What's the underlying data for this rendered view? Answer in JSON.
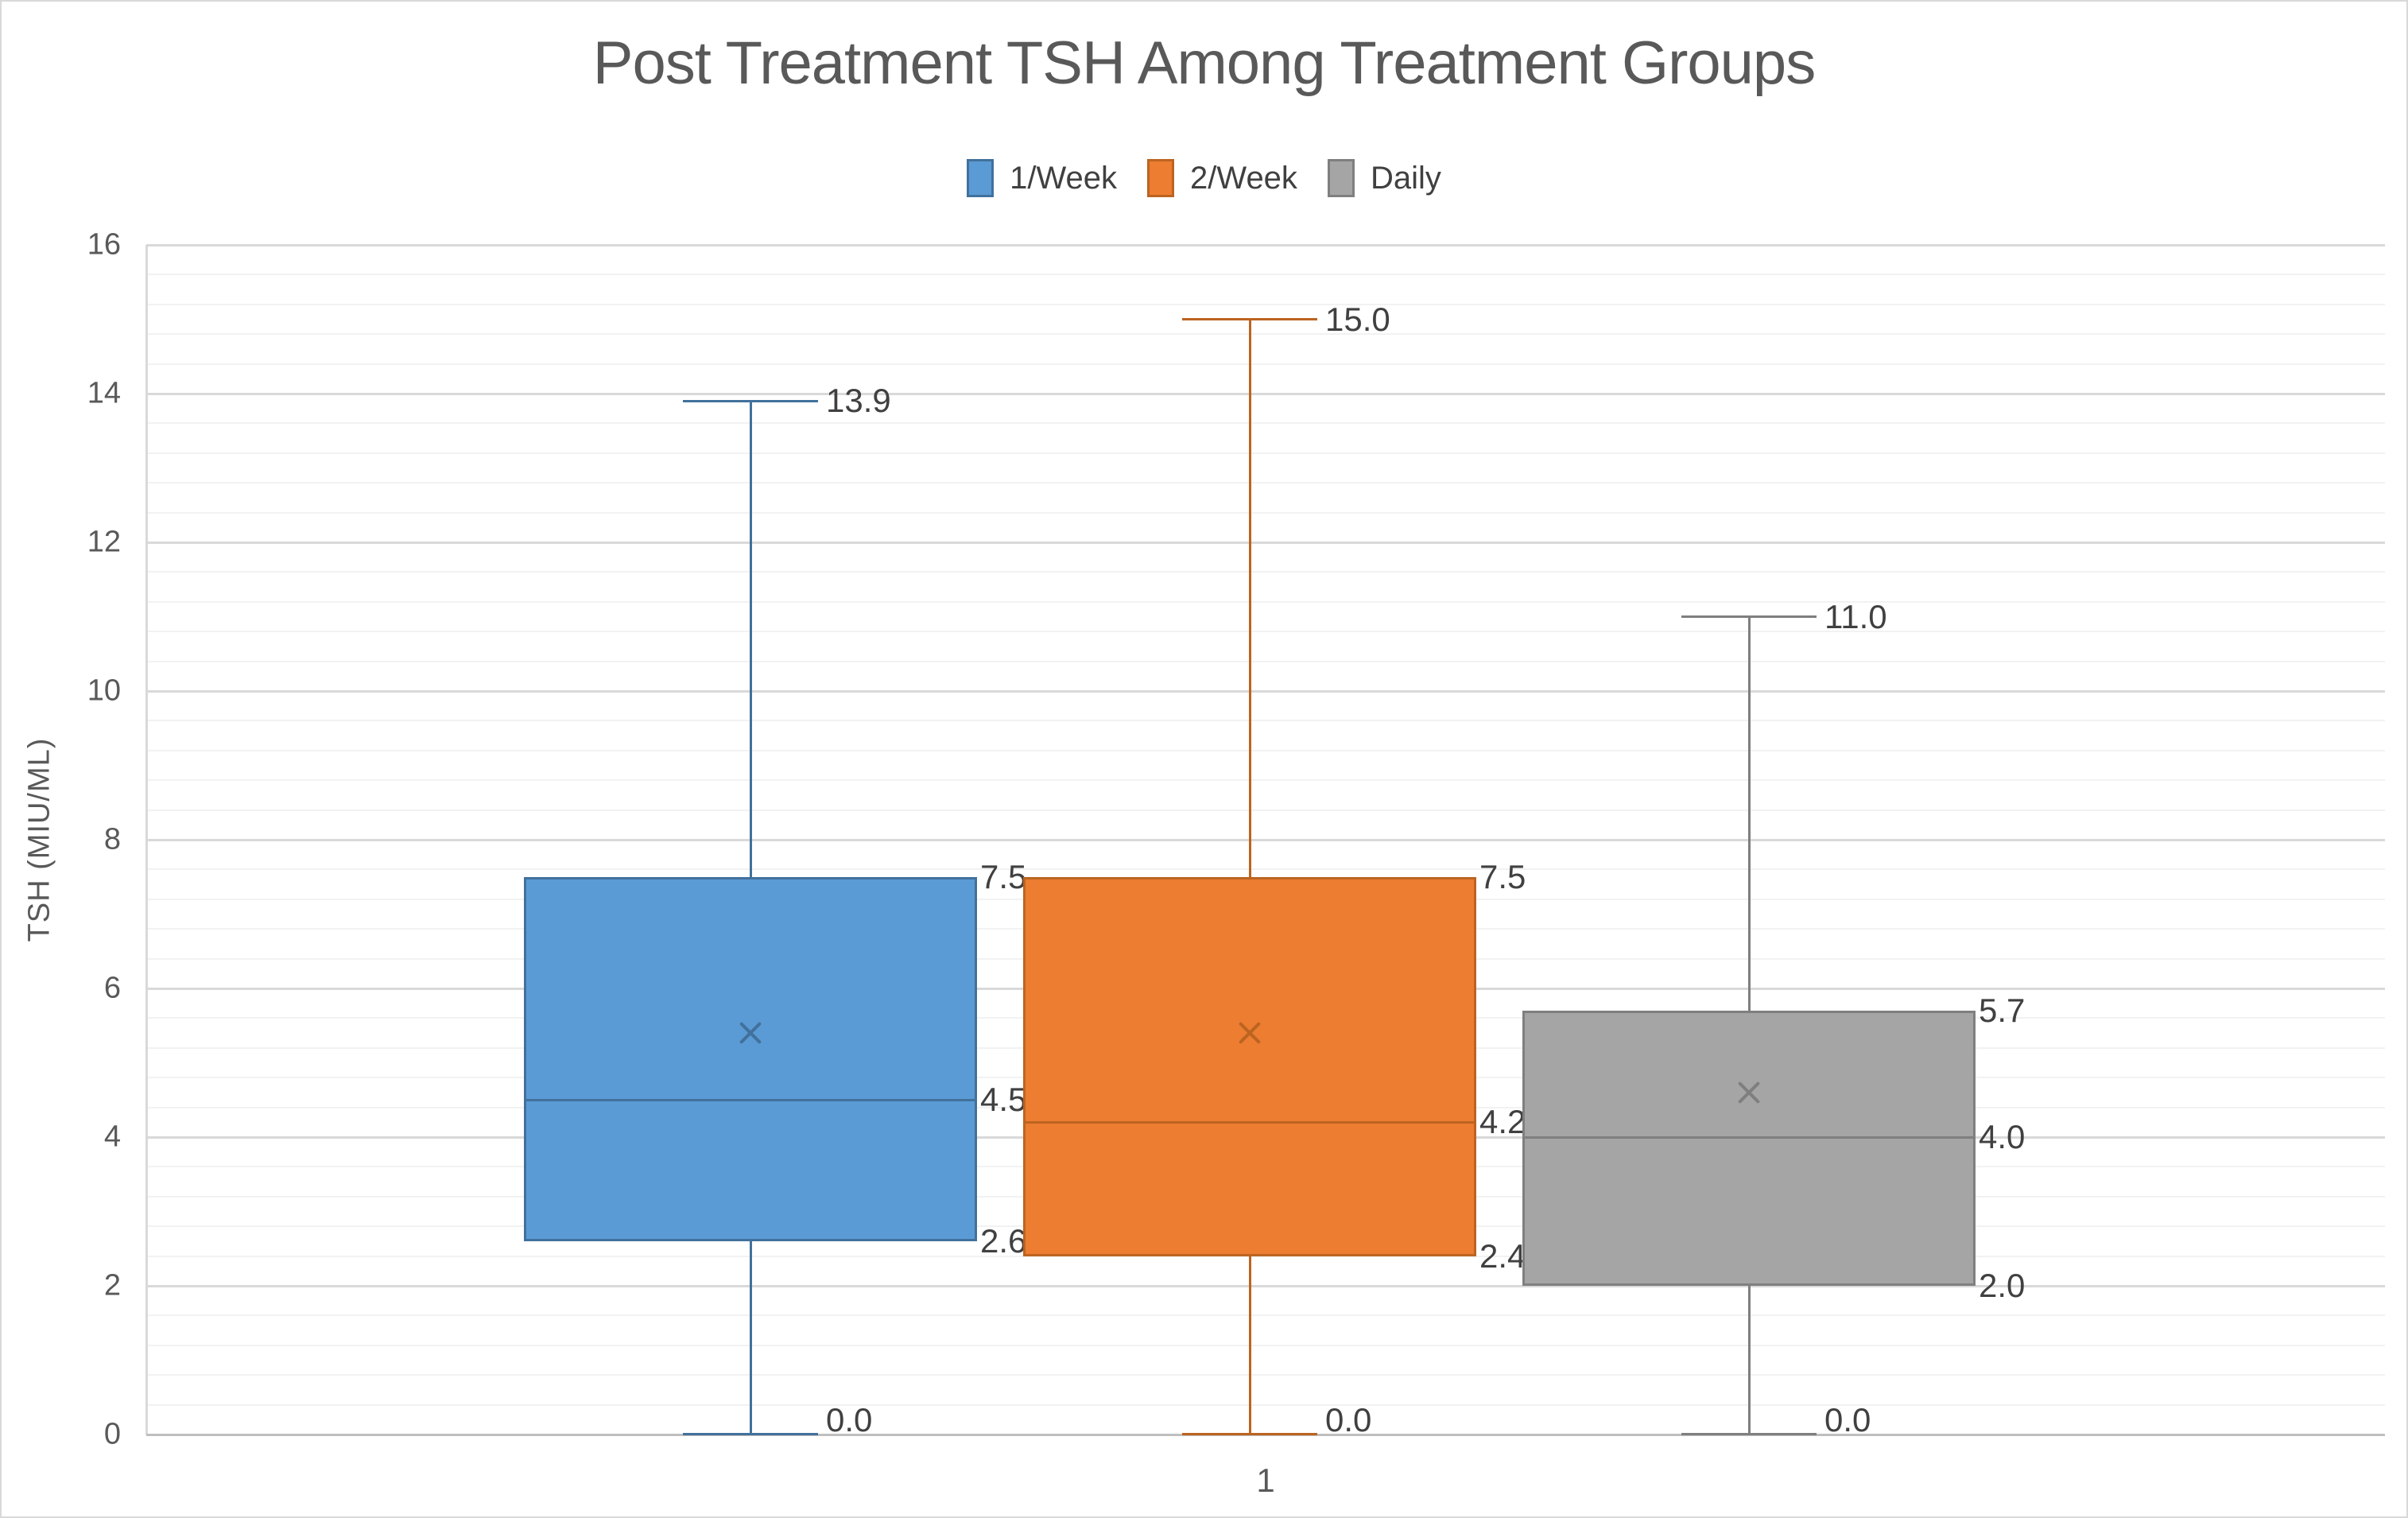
{
  "title": "Post Treatment TSH Among Treatment Groups",
  "legend": {
    "items": [
      {
        "label": "1/Week",
        "fill": "#5B9BD5",
        "stroke": "#41719C"
      },
      {
        "label": "2/Week",
        "fill": "#ED7D31",
        "stroke": "#BC6421"
      },
      {
        "label": "Daily",
        "fill": "#A5A5A5",
        "stroke": "#7F7F7F"
      }
    ]
  },
  "y_axis": {
    "title": "TSH (MIU/ML)",
    "min": 0,
    "max": 16,
    "major_unit": 2,
    "minor_unit": 0.4,
    "tick_labels": [
      "0",
      "2",
      "4",
      "6",
      "8",
      "10",
      "12",
      "14",
      "16"
    ]
  },
  "x_axis": {
    "category": "1"
  },
  "chart_data": {
    "type": "box",
    "categories": [
      "1"
    ],
    "title": "Post Treatment TSH Among Treatment Groups",
    "xlabel": "1",
    "ylabel": "TSH (MIU/ML)",
    "ylim": [
      0,
      16
    ],
    "grid": "major+minor horizontal",
    "legend_position": "top",
    "series": [
      {
        "name": "1/Week",
        "fill": "#5B9BD5",
        "stroke": "#41719C",
        "min": 0.0,
        "q1": 2.6,
        "median": 4.5,
        "q3": 7.5,
        "max": 13.9,
        "mean": 5.4,
        "labels": {
          "max": "13.9",
          "q3": "7.5",
          "median": "4.5",
          "q1": "2.6",
          "min": "0.0"
        }
      },
      {
        "name": "2/Week",
        "fill": "#ED7D31",
        "stroke": "#BC6421",
        "min": 0.0,
        "q1": 2.4,
        "median": 4.2,
        "q3": 7.5,
        "max": 15.0,
        "mean": 5.4,
        "labels": {
          "max": "15.0",
          "q3": "7.5",
          "median": "4.2",
          "q1": "2.4",
          "min": "0.0"
        }
      },
      {
        "name": "Daily",
        "fill": "#A5A5A5",
        "stroke": "#7F7F7F",
        "min": 0.0,
        "q1": 2.0,
        "median": 4.0,
        "q3": 5.7,
        "max": 11.0,
        "mean": 4.6,
        "labels": {
          "max": "11.0",
          "q3": "5.7",
          "median": "4.0",
          "q1": "2.0",
          "min": "0.0"
        }
      }
    ]
  },
  "colors": {
    "background": "#FFFFFF",
    "panel_border": "#D9D9D9",
    "major_gridline": "#D9D9D9",
    "minor_gridline": "#F2F2F2",
    "x_axis_line": "#BFBFBF",
    "y_axis_line": "#D9D9D9",
    "title_text": "#595959",
    "tick_text": "#595959",
    "data_label_text": "#404040"
  }
}
